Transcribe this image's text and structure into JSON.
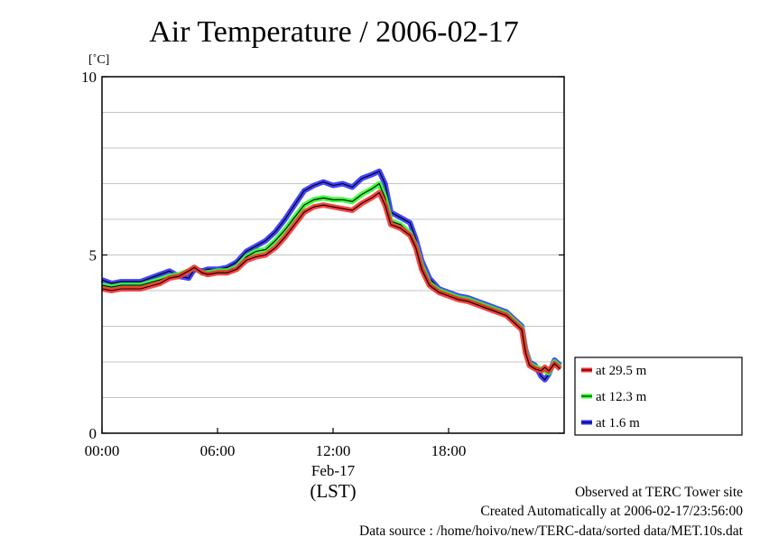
{
  "chart_data": {
    "type": "line",
    "title": "Air Temperature / 2006-02-17",
    "ylabel": "[˚C]",
    "xlabel": "(LST)",
    "ylim": [
      0,
      10
    ],
    "xlim_hours": [
      0,
      24
    ],
    "y_ticks": [
      "0",
      "5",
      "10"
    ],
    "x_ticks": [
      {
        "h": 0,
        "label": "00:00"
      },
      {
        "h": 6,
        "label": "06:00"
      },
      {
        "h": 12,
        "label": "12:00"
      },
      {
        "h": 18,
        "label": "18:00"
      }
    ],
    "date_label": "Feb-17",
    "grid": "horizontal",
    "legend_position": "right",
    "series": [
      {
        "name": "at 29.5 m",
        "color": "#ff3030",
        "points": [
          [
            0,
            4.05
          ],
          [
            0.5,
            4.0
          ],
          [
            1,
            4.05
          ],
          [
            2,
            4.05
          ],
          [
            3,
            4.2
          ],
          [
            3.5,
            4.35
          ],
          [
            4,
            4.4
          ],
          [
            4.5,
            4.55
          ],
          [
            4.8,
            4.65
          ],
          [
            5.2,
            4.5
          ],
          [
            5.5,
            4.45
          ],
          [
            6,
            4.5
          ],
          [
            6.5,
            4.5
          ],
          [
            7,
            4.6
          ],
          [
            7.5,
            4.85
          ],
          [
            8,
            4.95
          ],
          [
            8.5,
            5.0
          ],
          [
            9,
            5.2
          ],
          [
            9.5,
            5.5
          ],
          [
            10,
            5.85
          ],
          [
            10.5,
            6.2
          ],
          [
            11,
            6.35
          ],
          [
            11.5,
            6.4
          ],
          [
            12,
            6.35
          ],
          [
            12.5,
            6.3
          ],
          [
            13,
            6.25
          ],
          [
            13.5,
            6.45
          ],
          [
            14,
            6.6
          ],
          [
            14.4,
            6.75
          ],
          [
            14.7,
            6.4
          ],
          [
            15,
            5.85
          ],
          [
            15.5,
            5.75
          ],
          [
            16,
            5.55
          ],
          [
            16.3,
            5.2
          ],
          [
            16.6,
            4.6
          ],
          [
            17,
            4.15
          ],
          [
            17.5,
            3.95
          ],
          [
            18,
            3.85
          ],
          [
            18.5,
            3.75
          ],
          [
            19,
            3.7
          ],
          [
            19.5,
            3.6
          ],
          [
            20,
            3.5
          ],
          [
            20.5,
            3.4
          ],
          [
            21,
            3.3
          ],
          [
            21.5,
            3.05
          ],
          [
            21.8,
            2.9
          ],
          [
            22,
            2.25
          ],
          [
            22.2,
            1.9
          ],
          [
            22.5,
            1.8
          ],
          [
            22.8,
            1.75
          ],
          [
            23,
            1.85
          ],
          [
            23.2,
            1.75
          ],
          [
            23.5,
            1.95
          ],
          [
            23.8,
            1.8
          ]
        ]
      },
      {
        "name": "at 12.3 m",
        "color": "#30ff30",
        "points": [
          [
            0,
            4.15
          ],
          [
            0.5,
            4.1
          ],
          [
            1,
            4.15
          ],
          [
            2,
            4.15
          ],
          [
            3,
            4.3
          ],
          [
            3.5,
            4.4
          ],
          [
            4,
            4.45
          ],
          [
            4.5,
            4.55
          ],
          [
            4.8,
            4.65
          ],
          [
            5.2,
            4.5
          ],
          [
            5.5,
            4.5
          ],
          [
            6,
            4.55
          ],
          [
            6.5,
            4.55
          ],
          [
            7,
            4.65
          ],
          [
            7.5,
            4.95
          ],
          [
            8,
            5.1
          ],
          [
            8.5,
            5.15
          ],
          [
            9,
            5.4
          ],
          [
            9.5,
            5.7
          ],
          [
            10,
            6.05
          ],
          [
            10.5,
            6.4
          ],
          [
            11,
            6.55
          ],
          [
            11.5,
            6.6
          ],
          [
            12,
            6.55
          ],
          [
            12.5,
            6.55
          ],
          [
            13,
            6.5
          ],
          [
            13.5,
            6.7
          ],
          [
            14,
            6.85
          ],
          [
            14.4,
            7.0
          ],
          [
            14.7,
            6.6
          ],
          [
            15,
            5.95
          ],
          [
            15.5,
            5.85
          ],
          [
            16,
            5.6
          ],
          [
            16.3,
            5.25
          ],
          [
            16.6,
            4.7
          ],
          [
            17,
            4.2
          ],
          [
            17.5,
            4.0
          ],
          [
            18,
            3.9
          ],
          [
            18.5,
            3.8
          ],
          [
            19,
            3.75
          ],
          [
            19.5,
            3.65
          ],
          [
            20,
            3.55
          ],
          [
            20.5,
            3.45
          ],
          [
            21,
            3.35
          ],
          [
            21.5,
            3.1
          ],
          [
            21.8,
            2.95
          ],
          [
            22,
            2.3
          ],
          [
            22.2,
            1.95
          ],
          [
            22.5,
            1.85
          ],
          [
            22.8,
            1.8
          ],
          [
            23,
            1.75
          ],
          [
            23.2,
            1.7
          ],
          [
            23.5,
            2.0
          ],
          [
            23.8,
            1.85
          ]
        ]
      },
      {
        "name": "at 1.6 m",
        "color": "#3030ff",
        "points": [
          [
            0,
            4.3
          ],
          [
            0.5,
            4.2
          ],
          [
            1,
            4.25
          ],
          [
            2,
            4.25
          ],
          [
            3,
            4.45
          ],
          [
            3.5,
            4.55
          ],
          [
            4,
            4.4
          ],
          [
            4.5,
            4.35
          ],
          [
            4.8,
            4.6
          ],
          [
            5.2,
            4.55
          ],
          [
            5.5,
            4.6
          ],
          [
            6,
            4.6
          ],
          [
            6.5,
            4.65
          ],
          [
            7,
            4.8
          ],
          [
            7.5,
            5.1
          ],
          [
            8,
            5.25
          ],
          [
            8.5,
            5.4
          ],
          [
            9,
            5.65
          ],
          [
            9.5,
            6.0
          ],
          [
            10,
            6.4
          ],
          [
            10.5,
            6.8
          ],
          [
            11,
            6.95
          ],
          [
            11.5,
            7.05
          ],
          [
            12,
            6.95
          ],
          [
            12.5,
            7.0
          ],
          [
            13,
            6.9
          ],
          [
            13.5,
            7.15
          ],
          [
            14,
            7.25
          ],
          [
            14.4,
            7.35
          ],
          [
            14.7,
            7.0
          ],
          [
            15,
            6.2
          ],
          [
            15.5,
            6.05
          ],
          [
            16,
            5.9
          ],
          [
            16.3,
            5.45
          ],
          [
            16.6,
            4.85
          ],
          [
            17,
            4.35
          ],
          [
            17.5,
            4.05
          ],
          [
            18,
            3.95
          ],
          [
            18.5,
            3.85
          ],
          [
            19,
            3.8
          ],
          [
            19.5,
            3.7
          ],
          [
            20,
            3.6
          ],
          [
            20.5,
            3.5
          ],
          [
            21,
            3.4
          ],
          [
            21.5,
            3.15
          ],
          [
            21.8,
            3.0
          ],
          [
            22,
            2.35
          ],
          [
            22.2,
            2.0
          ],
          [
            22.5,
            1.9
          ],
          [
            22.8,
            1.6
          ],
          [
            23,
            1.5
          ],
          [
            23.2,
            1.65
          ],
          [
            23.5,
            2.05
          ],
          [
            23.8,
            1.9
          ]
        ]
      }
    ]
  },
  "footer": {
    "line1": "Observed at TERC Tower site",
    "line2": "Created Automatically at 2006-02-17/23:56:00",
    "line3": "Data source : /home/hoivo/new/TERC-data/sorted  data/MET.10s.dat"
  }
}
